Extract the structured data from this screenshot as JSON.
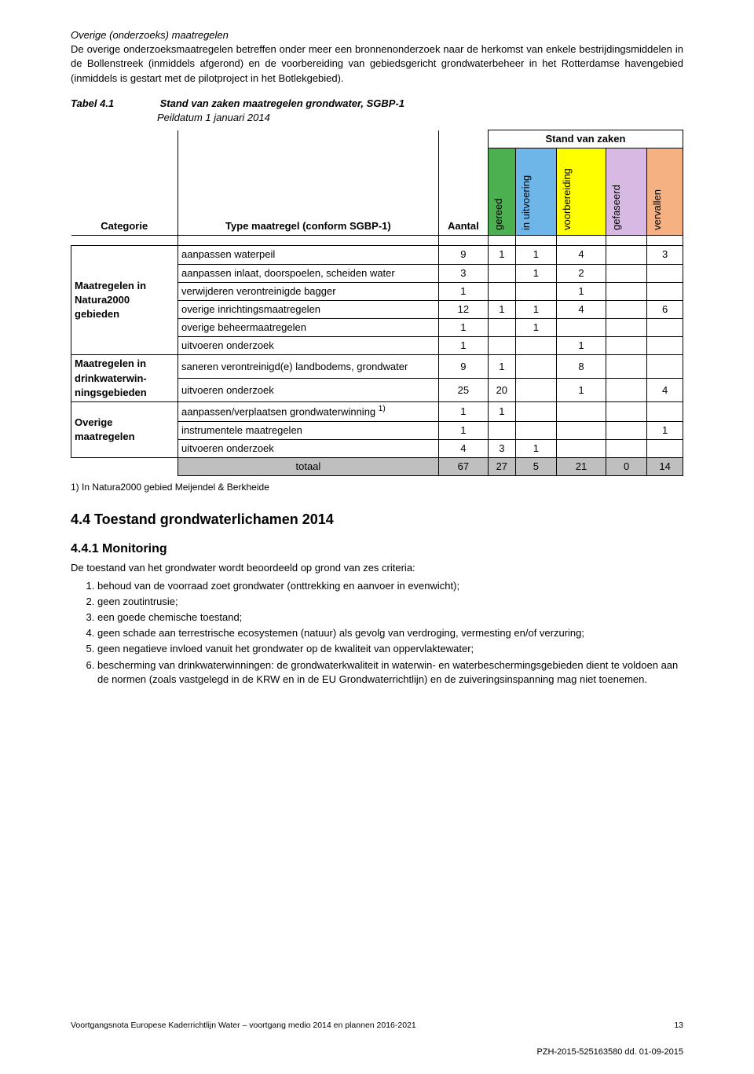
{
  "intro": {
    "heading": "Overige (onderzoeks) maatregelen",
    "text": "De overige onderzoeksmaatregelen betreffen onder meer een bronnenonderzoek naar de herkomst van enkele bestrijdingsmiddelen in de Bollenstreek (inmiddels afgerond) en de voorbereiding van gebiedsgericht grondwaterbeheer in het Rotterdamse havengebied (inmiddels is gestart met de pilotproject in het Botlekgebied)."
  },
  "table": {
    "label": "Tabel 4.1",
    "title": "Stand van zaken maatregelen grondwater, SGBP-1",
    "subtitle": "Peildatum 1 januari 2014",
    "colHeaders": {
      "categorie": "Categorie",
      "type": "Type maatregel (conform SGBP-1)",
      "aantal": "Aantal",
      "group": "Stand van zaken",
      "s1": "gereed",
      "s2": "in uitvoering",
      "s3": "voorbereiding",
      "s4": "gefaseerd",
      "s5": "vervallen"
    },
    "colors": {
      "gereed": "#4cb050",
      "uitvoering": "#6fb6e8",
      "voorbereiding": "#ffff00",
      "gefaseerd": "#d7b9e4",
      "vervallen": "#f6b183",
      "totaalRow": "#bfbfbf",
      "white": "#ffffff"
    },
    "sections": [
      {
        "category": "Maatregelen in Natura2000 gebieden",
        "rows": [
          {
            "type": "aanpassen waterpeil",
            "aantal": 9,
            "s1": 1,
            "s2": 1,
            "s3": 4,
            "s4": "",
            "s5": 3
          },
          {
            "type": "aanpassen inlaat, doorspoelen, scheiden water",
            "aantal": 3,
            "s1": "",
            "s2": 1,
            "s3": 2,
            "s4": "",
            "s5": ""
          },
          {
            "type": "verwijderen verontreinigde bagger",
            "aantal": 1,
            "s1": "",
            "s2": "",
            "s3": 1,
            "s4": "",
            "s5": ""
          },
          {
            "type": "overige inrichtingsmaatregelen",
            "aantal": 12,
            "s1": 1,
            "s2": 1,
            "s3": 4,
            "s4": "",
            "s5": 6
          },
          {
            "type": "overige beheermaatregelen",
            "aantal": 1,
            "s1": "",
            "s2": 1,
            "s3": "",
            "s4": "",
            "s5": ""
          },
          {
            "type": "uitvoeren onderzoek",
            "aantal": 1,
            "s1": "",
            "s2": "",
            "s3": 1,
            "s4": "",
            "s5": ""
          }
        ]
      },
      {
        "category": "Maatregelen in drinkwaterwin-ningsgebieden",
        "rows": [
          {
            "type": "saneren verontreinigd(e) landbodems, grondwater",
            "aantal": 9,
            "s1": 1,
            "s2": "",
            "s3": 8,
            "s4": "",
            "s5": ""
          },
          {
            "type": "uitvoeren onderzoek",
            "aantal": 25,
            "s1": 20,
            "s2": "",
            "s3": 1,
            "s4": "",
            "s5": 4
          }
        ]
      },
      {
        "category": "Overige maatregelen",
        "rows": [
          {
            "type": "aanpassen/verplaatsen grondwaterwinning 1)",
            "aantal": 1,
            "s1": 1,
            "s2": "",
            "s3": "",
            "s4": "",
            "s5": "",
            "sup": true
          },
          {
            "type": "instrumentele maatregelen",
            "aantal": 1,
            "s1": "",
            "s2": "",
            "s3": "",
            "s4": "",
            "s5": 1
          },
          {
            "type": "uitvoeren onderzoek",
            "aantal": 4,
            "s1": 3,
            "s2": 1,
            "s3": "",
            "s4": "",
            "s5": ""
          }
        ]
      }
    ],
    "total": {
      "label": "totaal",
      "aantal": 67,
      "s1": 27,
      "s2": 5,
      "s3": 21,
      "s4": 0,
      "s5": 14
    },
    "footnote": "1) In Natura2000 gebied Meijendel & Berkheide"
  },
  "section44": {
    "heading": "4.4  Toestand grondwaterlichamen 2014",
    "sub": {
      "heading": "4.4.1 Monitoring",
      "intro": "De toestand van het grondwater wordt beoordeeld op grond van zes criteria:",
      "items": [
        "behoud van de voorraad zoet grondwater (onttrekking en aanvoer in evenwicht);",
        "geen zoutintrusie;",
        "een goede chemische toestand;",
        "geen schade aan terrestrische ecosystemen (natuur) als gevolg van verdroging, vermesting en/of verzuring;",
        "geen negatieve invloed vanuit het grondwater op de kwaliteit van oppervlaktewater;",
        "bescherming van drinkwaterwinningen: de grondwaterkwaliteit in waterwin- en waterbeschermingsgebieden dient te voldoen aan de normen (zoals vastgelegd in de KRW en in de EU Grondwaterrichtlijn) en de zuiveringsinspanning mag niet toenemen."
      ]
    }
  },
  "footer": {
    "left": "Voortgangsnota Europese Kaderrichtlijn Water – voortgang medio 2014 en plannen 2016-2021",
    "page": "13",
    "stamp": "PZH-2015-525163580 dd. 01-09-2015"
  }
}
